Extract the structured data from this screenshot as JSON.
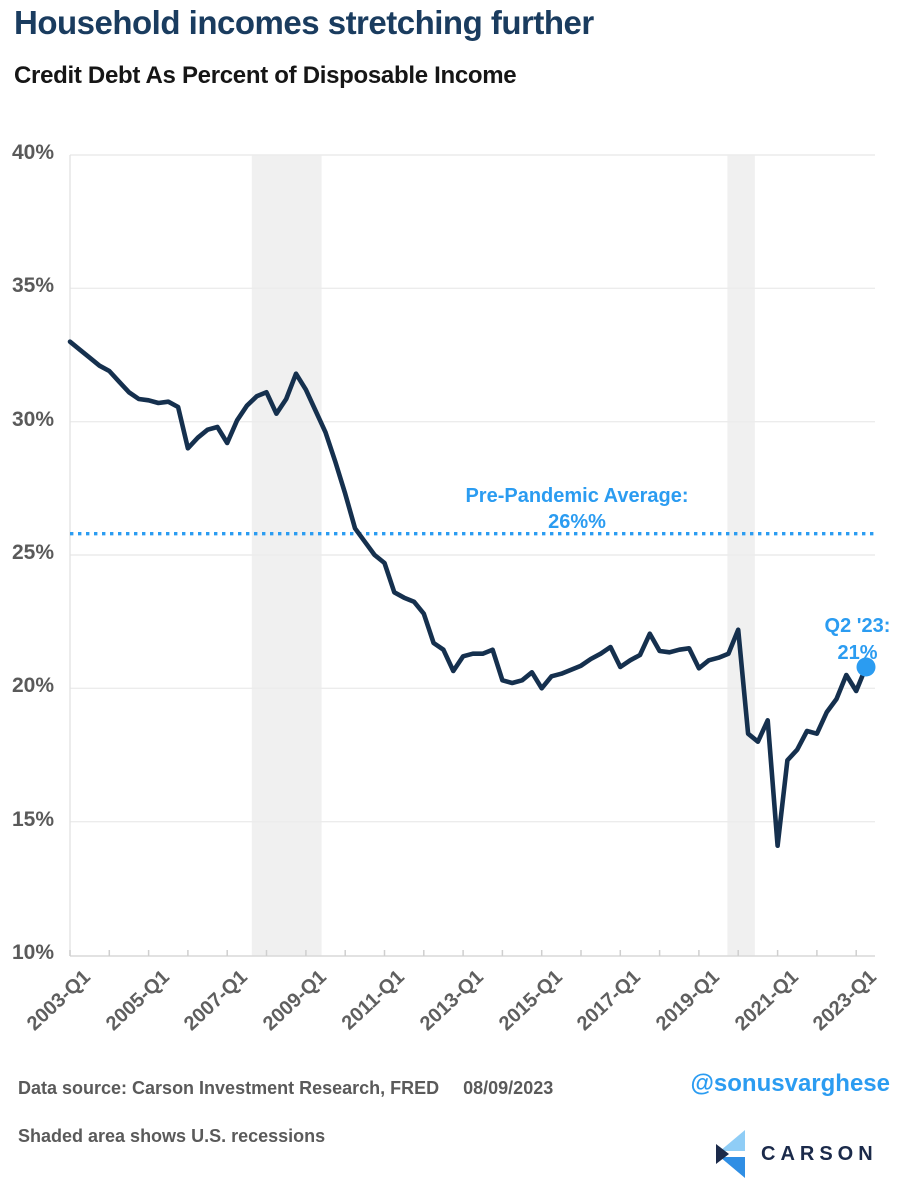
{
  "header": {
    "title": "Household incomes stretching further",
    "subtitle": "Credit Debt As Percent of Disposable Income"
  },
  "chart_data": {
    "type": "line",
    "title": "Credit Debt As Percent of Disposable Income",
    "x_start": "2003-Q1",
    "x_end": "2023-Q2",
    "frequency": "quarterly",
    "x_tick_labels": [
      "2003-Q1",
      "2005-Q1",
      "2007-Q1",
      "2009-Q1",
      "2011-Q1",
      "2013-Q1",
      "2015-Q1",
      "2017-Q1",
      "2019-Q1",
      "2021-Q1",
      "2023-Q1"
    ],
    "y_ticks": [
      10,
      15,
      20,
      25,
      30,
      35,
      40
    ],
    "y_tick_suffix": "%",
    "ylim": [
      10,
      40
    ],
    "grid": true,
    "legend": false,
    "line_color": "#15304E",
    "series": [
      {
        "name": "Credit Debt As Percent of Disposable Income",
        "values": [
          33.0,
          32.7,
          32.4,
          32.1,
          31.9,
          31.5,
          31.1,
          30.85,
          30.8,
          30.7,
          30.75,
          30.55,
          29.0,
          29.4,
          29.7,
          29.8,
          29.2,
          30.05,
          30.6,
          30.95,
          31.1,
          30.3,
          30.85,
          31.8,
          31.2,
          30.4,
          29.6,
          28.5,
          27.3,
          26.0,
          25.5,
          25.0,
          24.7,
          23.6,
          23.4,
          23.25,
          22.8,
          21.7,
          21.45,
          20.65,
          21.2,
          21.3,
          21.3,
          21.45,
          20.3,
          20.2,
          20.3,
          20.6,
          20.0,
          20.45,
          20.55,
          20.7,
          20.85,
          21.1,
          21.3,
          21.55,
          20.8,
          21.05,
          21.25,
          22.05,
          21.4,
          21.35,
          21.45,
          21.5,
          20.75,
          21.05,
          21.15,
          21.3,
          22.2,
          18.3,
          18.0,
          18.8,
          14.1,
          17.3,
          17.7,
          18.4,
          18.3,
          19.1,
          19.6,
          20.5,
          19.9,
          20.8
        ]
      }
    ],
    "average_line": {
      "value": 25.8,
      "style": "dotted",
      "color": "#2B9CF1",
      "label_line1": "Pre-Pandemic Average:",
      "label_line2": "26%%"
    },
    "end_annotation": {
      "label_line1": "Q2 '23:",
      "label_line2": "21%",
      "quarter": "2023-Q2",
      "value": 20.8,
      "marker_color": "#2B9CF1"
    },
    "recessions": [
      {
        "from_quarter_index": 18.5,
        "to_quarter_index": 25.6
      },
      {
        "from_quarter_index": 66.9,
        "to_quarter_index": 69.7
      }
    ]
  },
  "footer": {
    "source": "Data source: Carson Investment Research, FRED",
    "date": "08/09/2023",
    "note": "Shaded area shows U.S. recessions",
    "handle": "@sonusvarghese",
    "brand": "CARSON"
  }
}
